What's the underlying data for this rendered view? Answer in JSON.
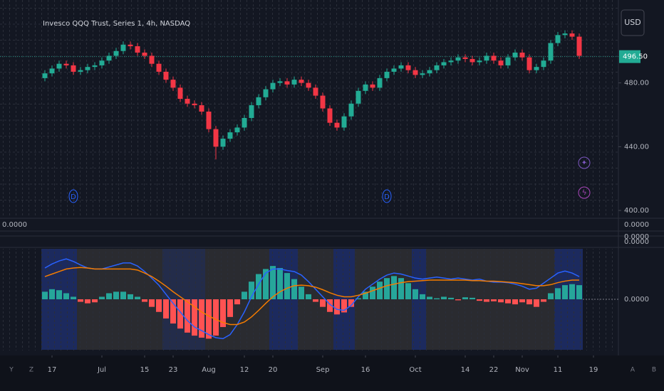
{
  "chart_data": [
    {
      "type": "candlestick",
      "title": "Invesco QQQ Trust, Series 1, 4h, NASDAQ",
      "currency": "USD",
      "up_color": "#22ab94",
      "down_color": "#f23645",
      "xlim": [
        -0.5,
        75.5
      ],
      "ylim": [
        396,
        532
      ],
      "yticks": [
        {
          "value": 480,
          "label": "480.00"
        },
        {
          "value": 440,
          "label": "440.00"
        },
        {
          "value": 400,
          "label": "400.00"
        }
      ],
      "last_price": {
        "value": 496.5,
        "label": "496.50"
      },
      "events": [
        {
          "index": 4,
          "label": "D"
        },
        {
          "index": 48,
          "label": "D"
        }
      ],
      "open": [
        483,
        486,
        489,
        492,
        491,
        487,
        488,
        490,
        491,
        494,
        497,
        500,
        504,
        503,
        499,
        497,
        492,
        487,
        482,
        477,
        470,
        467,
        466,
        462,
        451,
        440,
        445,
        449,
        452,
        458,
        466,
        471,
        476,
        480,
        481,
        479,
        482,
        480,
        477,
        472,
        464,
        455,
        452,
        459,
        467,
        475,
        479,
        477,
        483,
        487,
        489,
        491,
        488,
        485,
        486,
        488,
        491,
        493,
        494,
        496,
        495,
        493,
        494,
        497,
        494,
        491,
        496,
        499,
        496,
        488,
        490,
        494,
        505,
        510,
        511,
        509
      ],
      "high": [
        488,
        491,
        494,
        494,
        493,
        490,
        492,
        493,
        496,
        499,
        502,
        506,
        506,
        505,
        501,
        499,
        494,
        489,
        484,
        479,
        472,
        469,
        468,
        464,
        453,
        447,
        451,
        454,
        460,
        468,
        473,
        478,
        482,
        483,
        483,
        484,
        484,
        482,
        479,
        474,
        466,
        457,
        461,
        469,
        477,
        481,
        481,
        485,
        489,
        491,
        493,
        493,
        490,
        488,
        490,
        493,
        495,
        496,
        498,
        498,
        497,
        496,
        499,
        499,
        496,
        498,
        501,
        501,
        498,
        492,
        496,
        507,
        512,
        513,
        513,
        511
      ],
      "low": [
        481,
        484,
        487,
        489,
        485,
        485,
        486,
        488,
        489,
        492,
        495,
        498,
        501,
        497,
        495,
        490,
        485,
        480,
        475,
        468,
        465,
        464,
        460,
        449,
        432,
        438,
        443,
        447,
        450,
        456,
        464,
        469,
        474,
        478,
        477,
        477,
        478,
        475,
        470,
        462,
        453,
        450,
        450,
        457,
        465,
        473,
        475,
        475,
        481,
        485,
        487,
        486,
        483,
        483,
        484,
        486,
        489,
        491,
        492,
        493,
        491,
        491,
        492,
        492,
        489,
        489,
        494,
        494,
        486,
        486,
        488,
        492,
        503,
        508,
        507,
        495
      ],
      "close": [
        486,
        489,
        492,
        491,
        487,
        488,
        490,
        491,
        494,
        497,
        500,
        504,
        503,
        499,
        497,
        492,
        487,
        482,
        477,
        470,
        467,
        466,
        462,
        451,
        440,
        445,
        449,
        452,
        458,
        466,
        471,
        476,
        480,
        481,
        479,
        482,
        480,
        477,
        472,
        464,
        455,
        452,
        459,
        467,
        475,
        479,
        477,
        483,
        487,
        489,
        491,
        488,
        485,
        486,
        488,
        491,
        493,
        494,
        496,
        495,
        493,
        494,
        497,
        494,
        491,
        496,
        499,
        496,
        488,
        490,
        494,
        505,
        510,
        511,
        509,
        497
      ]
    },
    {
      "type": "oscillator",
      "xlim": [
        -0.5,
        75.5
      ],
      "ylim": [
        -1,
        1
      ],
      "yticks": [
        {
          "value": 0,
          "label": "0.0000"
        }
      ],
      "xticks": [
        {
          "value": 1,
          "label": "17"
        },
        {
          "value": 8,
          "label": "Jul"
        },
        {
          "value": 14,
          "label": "15"
        },
        {
          "value": 18,
          "label": "23"
        },
        {
          "value": 23,
          "label": "Aug"
        },
        {
          "value": 28,
          "label": "12"
        },
        {
          "value": 32,
          "label": "20"
        },
        {
          "value": 39,
          "label": "Sep"
        },
        {
          "value": 45,
          "label": "16"
        },
        {
          "value": 52,
          "label": "Oct"
        },
        {
          "value": 59,
          "label": "14"
        },
        {
          "value": 63,
          "label": "22"
        },
        {
          "value": 67,
          "label": "Nov"
        },
        {
          "value": 72,
          "label": "11"
        },
        {
          "value": 77,
          "label": "19"
        }
      ],
      "background": [
        {
          "from": 0,
          "to": 4,
          "color": "#1c2a5e"
        },
        {
          "from": 5,
          "to": 16,
          "color": "#2a2b30"
        },
        {
          "from": 17,
          "to": 22,
          "color": "#232c4a"
        },
        {
          "from": 23,
          "to": 31,
          "color": "#2a2b30"
        },
        {
          "from": 32,
          "to": 35,
          "color": "#1c2a5e"
        },
        {
          "from": 36,
          "to": 40,
          "color": "#2a2b30"
        },
        {
          "from": 41,
          "to": 43,
          "color": "#1c2a5e"
        },
        {
          "from": 44,
          "to": 51,
          "color": "#2a2b30"
        },
        {
          "from": 52,
          "to": 53,
          "color": "#1c2a5e"
        },
        {
          "from": 54,
          "to": 71,
          "color": "#2a2b30"
        },
        {
          "from": 72,
          "to": 75,
          "color": "#1c2a5e"
        }
      ],
      "histogram": {
        "up_color": "#26a69a",
        "down_color": "#ff5252",
        "values": [
          0.15,
          0.2,
          0.18,
          0.12,
          0.05,
          -0.05,
          -0.08,
          -0.06,
          0.05,
          0.12,
          0.15,
          0.15,
          0.1,
          0.05,
          -0.05,
          -0.15,
          -0.25,
          -0.38,
          -0.48,
          -0.58,
          -0.66,
          -0.72,
          -0.76,
          -0.78,
          -0.72,
          -0.55,
          -0.35,
          -0.1,
          0.15,
          0.35,
          0.5,
          0.6,
          0.66,
          0.62,
          0.52,
          0.4,
          0.25,
          0.1,
          -0.05,
          -0.15,
          -0.25,
          -0.3,
          -0.26,
          -0.15,
          0.02,
          0.15,
          0.25,
          0.35,
          0.42,
          0.46,
          0.42,
          0.32,
          0.2,
          0.1,
          0.05,
          0.02,
          0.05,
          0.03,
          -0.02,
          0.04,
          0.03,
          -0.03,
          -0.05,
          -0.04,
          -0.06,
          -0.08,
          -0.1,
          -0.06,
          -0.1,
          -0.15,
          -0.05,
          0.12,
          0.22,
          0.28,
          0.3,
          0.28
        ]
      },
      "series": [
        {
          "color": "#2962ff",
          "values": [
            0.62,
            0.7,
            0.76,
            0.8,
            0.75,
            0.68,
            0.62,
            0.6,
            0.6,
            0.64,
            0.68,
            0.72,
            0.72,
            0.66,
            0.55,
            0.42,
            0.28,
            0.1,
            -0.08,
            -0.25,
            -0.42,
            -0.55,
            -0.62,
            -0.7,
            -0.76,
            -0.78,
            -0.7,
            -0.5,
            -0.25,
            0.05,
            0.3,
            0.52,
            0.6,
            0.6,
            0.57,
            0.55,
            0.48,
            0.35,
            0.2,
            0.05,
            -0.1,
            -0.2,
            -0.22,
            -0.12,
            0.05,
            0.2,
            0.3,
            0.4,
            0.48,
            0.52,
            0.5,
            0.46,
            0.42,
            0.4,
            0.42,
            0.44,
            0.42,
            0.4,
            0.42,
            0.4,
            0.38,
            0.4,
            0.36,
            0.34,
            0.34,
            0.33,
            0.3,
            0.26,
            0.2,
            0.22,
            0.32,
            0.42,
            0.52,
            0.56,
            0.52,
            0.45
          ]
        },
        {
          "color": "#f57c00",
          "values": [
            0.45,
            0.5,
            0.55,
            0.6,
            0.62,
            0.63,
            0.62,
            0.6,
            0.6,
            0.6,
            0.6,
            0.6,
            0.6,
            0.58,
            0.52,
            0.45,
            0.36,
            0.26,
            0.15,
            0.05,
            -0.05,
            -0.15,
            -0.25,
            -0.33,
            -0.4,
            -0.46,
            -0.5,
            -0.5,
            -0.45,
            -0.35,
            -0.22,
            -0.08,
            0.05,
            0.15,
            0.22,
            0.27,
            0.28,
            0.27,
            0.24,
            0.19,
            0.13,
            0.08,
            0.05,
            0.05,
            0.08,
            0.12,
            0.17,
            0.22,
            0.27,
            0.3,
            0.33,
            0.35,
            0.36,
            0.37,
            0.38,
            0.38,
            0.38,
            0.38,
            0.38,
            0.38,
            0.37,
            0.37,
            0.36,
            0.36,
            0.35,
            0.34,
            0.33,
            0.31,
            0.29,
            0.27,
            0.27,
            0.29,
            0.33,
            0.36,
            0.38,
            0.38
          ]
        }
      ]
    }
  ],
  "collapsed_panes": [
    {
      "left_label": "0.0000",
      "right_label": "0.0000"
    },
    {
      "right_label": "0.0000"
    },
    {
      "right_label": "0.0000"
    }
  ],
  "nav_buttons": [
    "Y",
    "Z",
    "A",
    "B"
  ]
}
